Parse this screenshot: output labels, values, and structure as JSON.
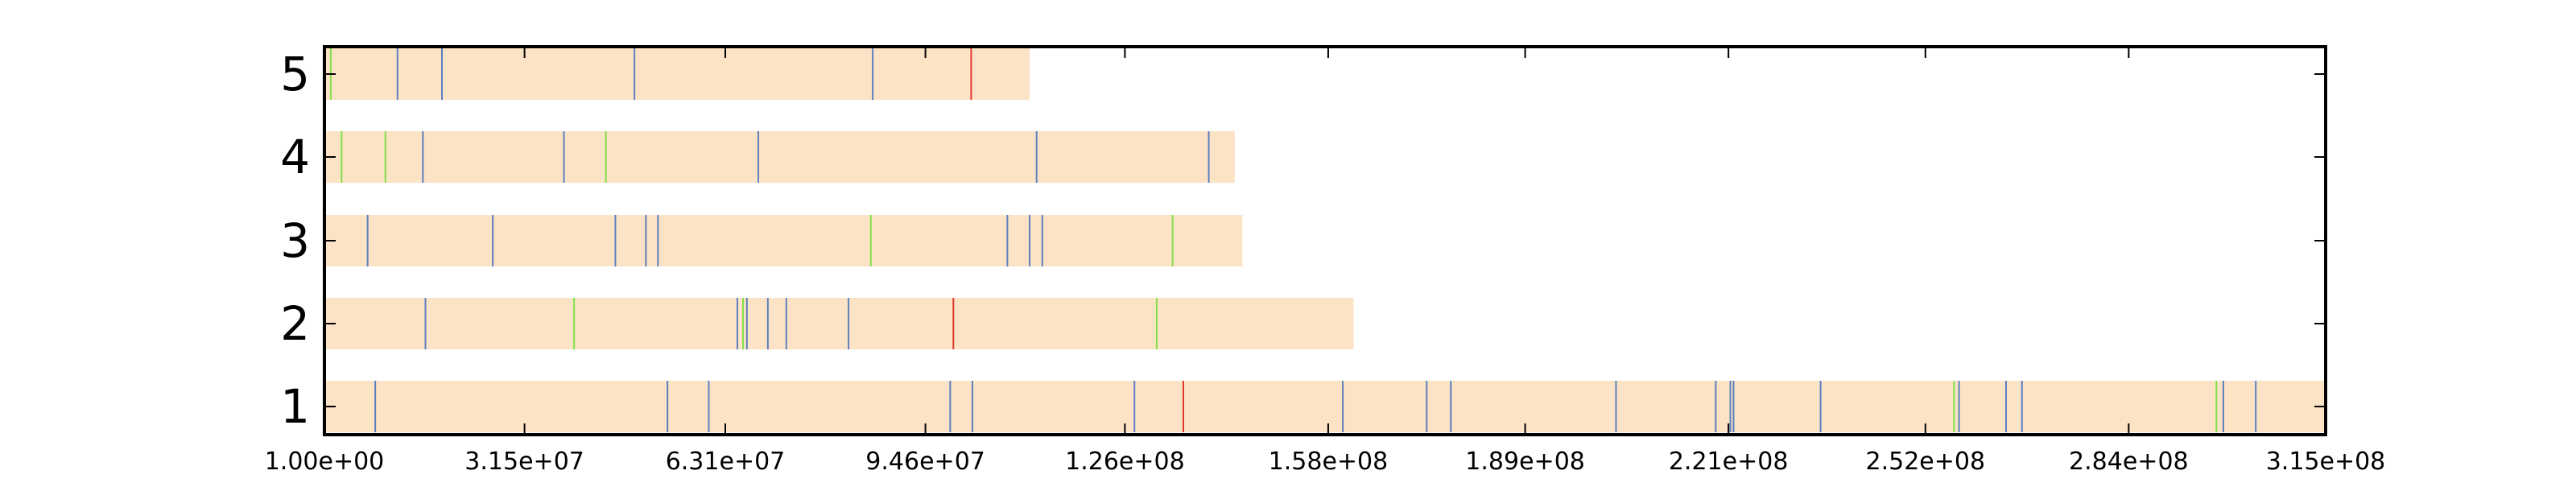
{
  "chart_data": {
    "type": "bar",
    "orientation": "horizontal",
    "title": "",
    "xlabel": "",
    "ylabel": "",
    "xlim": [
      1,
      315000000
    ],
    "x_ticks": [
      {
        "value": 1,
        "label": "1.00e+00"
      },
      {
        "value": 31500000,
        "label": "3.15e+07"
      },
      {
        "value": 63100000,
        "label": "6.31e+07"
      },
      {
        "value": 94600000,
        "label": "9.46e+07"
      },
      {
        "value": 126000000,
        "label": "1.26e+08"
      },
      {
        "value": 158000000,
        "label": "1.58e+08"
      },
      {
        "value": 189000000,
        "label": "1.89e+08"
      },
      {
        "value": 221000000,
        "label": "2.21e+08"
      },
      {
        "value": 252000000,
        "label": "2.52e+08"
      },
      {
        "value": 284000000,
        "label": "2.84e+08"
      },
      {
        "value": 315000000,
        "label": "3.15e+08"
      }
    ],
    "categories": [
      "1",
      "2",
      "3",
      "4",
      "5"
    ],
    "bar_color": "#fde3c5",
    "marker_colors": {
      "blue": "#5b7fbf",
      "green": "#7fe04a",
      "red": "#e23b2e"
    },
    "bars": [
      {
        "label": "1",
        "length": 315000000,
        "markers": [
          {
            "pos": 8000000,
            "color": "blue"
          },
          {
            "pos": 54000000,
            "color": "blue"
          },
          {
            "pos": 60500000,
            "color": "blue"
          },
          {
            "pos": 98500000,
            "color": "blue"
          },
          {
            "pos": 102000000,
            "color": "blue"
          },
          {
            "pos": 127500000,
            "color": "blue"
          },
          {
            "pos": 135200000,
            "color": "red"
          },
          {
            "pos": 160300000,
            "color": "blue"
          },
          {
            "pos": 173500000,
            "color": "blue"
          },
          {
            "pos": 177300000,
            "color": "blue"
          },
          {
            "pos": 203300000,
            "color": "blue"
          },
          {
            "pos": 219000000,
            "color": "blue"
          },
          {
            "pos": 221300000,
            "color": "blue"
          },
          {
            "pos": 221800000,
            "color": "blue"
          },
          {
            "pos": 235500000,
            "color": "blue"
          },
          {
            "pos": 256500000,
            "color": "green"
          },
          {
            "pos": 257300000,
            "color": "blue"
          },
          {
            "pos": 264700000,
            "color": "blue"
          },
          {
            "pos": 267200000,
            "color": "blue"
          },
          {
            "pos": 297800000,
            "color": "green"
          },
          {
            "pos": 298900000,
            "color": "blue"
          },
          {
            "pos": 304000000,
            "color": "blue"
          }
        ]
      },
      {
        "label": "2",
        "length": 162000000,
        "markers": [
          {
            "pos": 15900000,
            "color": "blue"
          },
          {
            "pos": 39300000,
            "color": "green"
          },
          {
            "pos": 65000000,
            "color": "blue"
          },
          {
            "pos": 65900000,
            "color": "green"
          },
          {
            "pos": 66500000,
            "color": "blue"
          },
          {
            "pos": 69800000,
            "color": "blue"
          },
          {
            "pos": 72700000,
            "color": "blue"
          },
          {
            "pos": 82500000,
            "color": "blue"
          },
          {
            "pos": 99000000,
            "color": "red"
          },
          {
            "pos": 131000000,
            "color": "green"
          }
        ]
      },
      {
        "label": "3",
        "length": 144500000,
        "markers": [
          {
            "pos": 6800000,
            "color": "blue"
          },
          {
            "pos": 26500000,
            "color": "blue"
          },
          {
            "pos": 45800000,
            "color": "blue"
          },
          {
            "pos": 50600000,
            "color": "blue"
          },
          {
            "pos": 52500000,
            "color": "blue"
          },
          {
            "pos": 86000000,
            "color": "green"
          },
          {
            "pos": 107500000,
            "color": "blue"
          },
          {
            "pos": 111000000,
            "color": "blue"
          },
          {
            "pos": 113000000,
            "color": "blue"
          },
          {
            "pos": 133500000,
            "color": "green"
          }
        ]
      },
      {
        "label": "4",
        "length": 143300000,
        "markers": [
          {
            "pos": 2700000,
            "color": "green"
          },
          {
            "pos": 9600000,
            "color": "green"
          },
          {
            "pos": 15500000,
            "color": "blue"
          },
          {
            "pos": 37700000,
            "color": "blue"
          },
          {
            "pos": 44300000,
            "color": "green"
          },
          {
            "pos": 68300000,
            "color": "blue"
          },
          {
            "pos": 112100000,
            "color": "blue"
          },
          {
            "pos": 139200000,
            "color": "blue"
          }
        ]
      },
      {
        "label": "5",
        "length": 111000000,
        "markers": [
          {
            "pos": 1000000,
            "color": "green"
          },
          {
            "pos": 11500000,
            "color": "blue"
          },
          {
            "pos": 18500000,
            "color": "blue"
          },
          {
            "pos": 48800000,
            "color": "blue"
          },
          {
            "pos": 86300000,
            "color": "blue"
          },
          {
            "pos": 101800000,
            "color": "red"
          }
        ]
      }
    ]
  }
}
